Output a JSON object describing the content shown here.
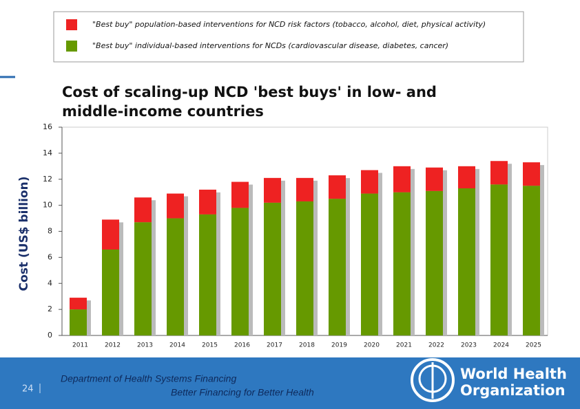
{
  "chart_data": {
    "type": "bar",
    "stacked": true,
    "title": "Cost of scaling-up NCD 'best buys' in low- and middle-income countries",
    "ylabel": "Cost (US$ billion)",
    "categories": [
      "2011",
      "2012",
      "2013",
      "2014",
      "2015",
      "2016",
      "2017",
      "2018",
      "2019",
      "2020",
      "2021",
      "2022",
      "2023",
      "2024",
      "2025"
    ],
    "series": [
      {
        "name": "\"Best buy\" individual-based interventions for NCDs (cardiovascular disease, diabetes, cancer)",
        "color": "#669900",
        "values": [
          2.0,
          6.6,
          8.7,
          9.0,
          9.3,
          9.8,
          10.2,
          10.3,
          10.5,
          10.9,
          11.0,
          11.1,
          11.3,
          11.6,
          11.5
        ]
      },
      {
        "name": "\"Best buy\" population-based interventions for NCD risk factors  (tobacco, alcohol, diet, physical activity)",
        "color": "#ee2222",
        "values": [
          0.9,
          2.3,
          1.9,
          1.9,
          1.9,
          2.0,
          1.9,
          1.8,
          1.8,
          1.8,
          2.0,
          1.8,
          1.7,
          1.8,
          1.8
        ]
      }
    ],
    "ylim": [
      0,
      16
    ],
    "yticks": [
      0,
      2,
      4,
      6,
      8,
      10,
      12,
      14,
      16
    ]
  },
  "footer": {
    "page": "24",
    "department": "Department of Health Systems Financing",
    "slogan": "Better Financing for Better Health",
    "org_line1": "World Health",
    "org_line2": "Organization"
  }
}
